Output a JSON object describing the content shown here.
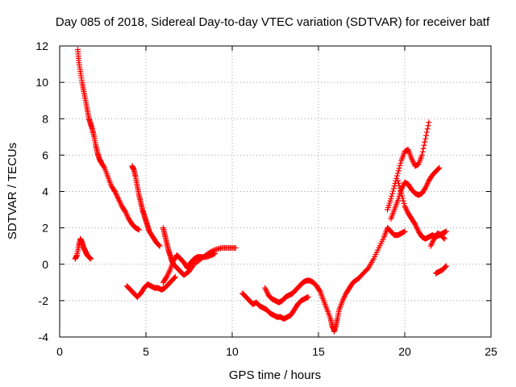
{
  "chart_data": {
    "type": "scatter",
    "title": "Day 085 of 2018, Sidereal Day-to-day VTEC variation (SDTVAR) for receiver batf",
    "xlabel": "GPS time / hours",
    "ylabel": "SDTVAR / TECUs",
    "xlim": [
      0,
      25
    ],
    "ylim": [
      -4,
      12
    ],
    "xticks": [
      0,
      5,
      10,
      15,
      20,
      25
    ],
    "yticks": [
      -4,
      -2,
      0,
      2,
      4,
      6,
      8,
      10,
      12
    ],
    "grid": true,
    "marker": "+",
    "color": "#ff0000",
    "series": [
      {
        "x": [
          1.05,
          1.1,
          1.2,
          1.3,
          1.4,
          1.5,
          1.6,
          1.7,
          1.8,
          1.9,
          2.0,
          2.1,
          2.2,
          2.3,
          2.4,
          2.6,
          2.8,
          3.0,
          3.2,
          3.4,
          3.6,
          3.8,
          4.0,
          4.2,
          4.4,
          4.6
        ],
        "y": [
          11.8,
          11.2,
          10.6,
          10.0,
          9.5,
          9.0,
          8.5,
          8.0,
          7.7,
          7.4,
          7.0,
          6.5,
          6.1,
          5.8,
          5.6,
          5.3,
          4.8,
          4.3,
          4.0,
          3.6,
          3.2,
          2.9,
          2.5,
          2.2,
          2.0,
          1.9
        ]
      },
      {
        "x": [
          0.9,
          1.0,
          1.1,
          1.2,
          1.3,
          1.4,
          1.5,
          1.6,
          1.7,
          1.8
        ],
        "y": [
          0.3,
          0.5,
          1.0,
          1.4,
          1.2,
          0.9,
          0.7,
          0.5,
          0.4,
          0.3
        ]
      },
      {
        "x": [
          4.2,
          4.3,
          4.4,
          4.5,
          4.6,
          4.7,
          4.8,
          4.9,
          5.0,
          5.1,
          5.2,
          5.4,
          5.6,
          5.8
        ],
        "y": [
          5.4,
          5.2,
          4.8,
          4.3,
          3.8,
          3.4,
          3.0,
          2.7,
          2.4,
          2.1,
          1.8,
          1.5,
          1.2,
          1.0
        ]
      },
      {
        "x": [
          3.9,
          4.1,
          4.3,
          4.5,
          4.7,
          4.9,
          5.1,
          5.3,
          5.5,
          5.7,
          5.9,
          6.1,
          6.3,
          6.5,
          6.7
        ],
        "y": [
          -1.2,
          -1.4,
          -1.6,
          -1.8,
          -1.6,
          -1.3,
          -1.1,
          -1.2,
          -1.3,
          -1.3,
          -1.4,
          -1.3,
          -1.1,
          -0.9,
          -0.7
        ]
      },
      {
        "x": [
          6.0,
          6.1,
          6.2,
          6.3,
          6.4,
          6.5,
          6.6,
          6.8,
          7.0,
          7.2,
          7.5,
          7.8,
          8.2,
          8.6,
          9.0,
          9.4,
          9.8,
          10.2
        ],
        "y": [
          2.0,
          1.6,
          1.2,
          0.8,
          0.5,
          0.2,
          0.0,
          -0.2,
          -0.4,
          -0.6,
          -0.4,
          0.0,
          0.3,
          0.6,
          0.8,
          0.9,
          0.9,
          0.9
        ]
      },
      {
        "x": [
          6.0,
          6.2,
          6.4,
          6.6,
          6.8,
          7.0,
          7.2,
          7.4,
          7.6,
          7.8,
          8.0,
          8.2,
          8.5,
          8.8,
          9.0
        ],
        "y": [
          -1.0,
          -0.7,
          -0.3,
          0.2,
          0.5,
          0.3,
          0.1,
          -0.2,
          0.1,
          0.3,
          0.4,
          0.4,
          0.4,
          0.5,
          0.6
        ]
      },
      {
        "x": [
          10.6,
          10.8,
          11.0,
          11.2,
          11.4,
          11.6,
          11.8,
          12.0,
          12.2,
          12.4,
          12.6,
          12.8,
          13.0,
          13.2,
          13.4,
          13.6,
          13.8,
          14.0,
          14.2,
          14.4
        ],
        "y": [
          -1.6,
          -1.8,
          -2.0,
          -2.2,
          -2.1,
          -2.3,
          -2.4,
          -2.5,
          -2.7,
          -2.8,
          -2.9,
          -2.9,
          -3.0,
          -2.9,
          -2.8,
          -2.5,
          -2.2,
          -2.0,
          -1.9,
          -1.8
        ]
      },
      {
        "x": [
          11.9,
          12.1,
          12.3,
          12.5,
          12.7,
          12.9,
          13.1,
          13.3,
          13.5,
          13.7,
          13.9,
          14.1,
          14.3,
          14.5,
          14.7,
          14.9,
          15.1,
          15.3,
          15.5,
          15.7,
          15.8,
          15.9
        ],
        "y": [
          -1.3,
          -1.7,
          -1.9,
          -2.0,
          -2.1,
          -2.0,
          -1.8,
          -1.7,
          -1.6,
          -1.4,
          -1.2,
          -1.0,
          -0.9,
          -0.9,
          -1.0,
          -1.2,
          -1.5,
          -2.0,
          -2.5,
          -3.0,
          -3.4,
          -3.6
        ]
      },
      {
        "x": [
          15.9,
          16.0,
          16.1,
          16.2,
          16.4,
          16.6,
          16.8,
          17.0,
          17.3,
          17.6,
          17.9,
          18.2,
          18.5,
          18.8,
          19.0,
          19.2,
          19.4,
          19.6,
          19.8,
          20.0
        ],
        "y": [
          -3.7,
          -3.4,
          -3.0,
          -2.5,
          -2.0,
          -1.6,
          -1.3,
          -1.0,
          -0.8,
          -0.5,
          -0.2,
          0.3,
          0.9,
          1.5,
          2.0,
          1.8,
          1.6,
          1.6,
          1.7,
          1.8
        ]
      },
      {
        "x": [
          19.0,
          19.2,
          19.4,
          19.6,
          19.8,
          20.0,
          20.2,
          20.4,
          20.6,
          20.8,
          21.0,
          21.2,
          21.4
        ],
        "y": [
          3.0,
          3.6,
          4.3,
          5.0,
          5.7,
          6.2,
          6.3,
          5.8,
          5.4,
          5.5,
          6.0,
          6.9,
          7.8
        ]
      },
      {
        "x": [
          19.2,
          19.4,
          19.6,
          19.8,
          20.0,
          20.2,
          20.4,
          20.6,
          20.8,
          21.0,
          21.2,
          21.4,
          21.6,
          21.8,
          22.0
        ],
        "y": [
          2.5,
          3.0,
          3.5,
          4.1,
          4.5,
          4.4,
          4.1,
          3.9,
          3.8,
          3.9,
          4.2,
          4.6,
          4.9,
          5.1,
          5.3
        ]
      },
      {
        "x": [
          19.6,
          19.8,
          20.0,
          20.2,
          20.4,
          20.6,
          20.8,
          21.0,
          21.2,
          21.4,
          21.6,
          21.8,
          22.0,
          22.2,
          22.4
        ],
        "y": [
          4.6,
          3.9,
          3.2,
          2.8,
          2.5,
          2.2,
          1.8,
          1.5,
          1.4,
          1.5,
          1.6,
          1.5,
          1.6,
          1.7,
          1.8
        ]
      },
      {
        "x": [
          21.5,
          21.7,
          21.9,
          22.1,
          22.3
        ],
        "y": [
          1.0,
          1.4,
          1.7,
          1.6,
          1.4
        ]
      },
      {
        "x": [
          21.8,
          22.0,
          22.2,
          22.4
        ],
        "y": [
          -0.5,
          -0.4,
          -0.3,
          -0.1
        ]
      }
    ]
  }
}
